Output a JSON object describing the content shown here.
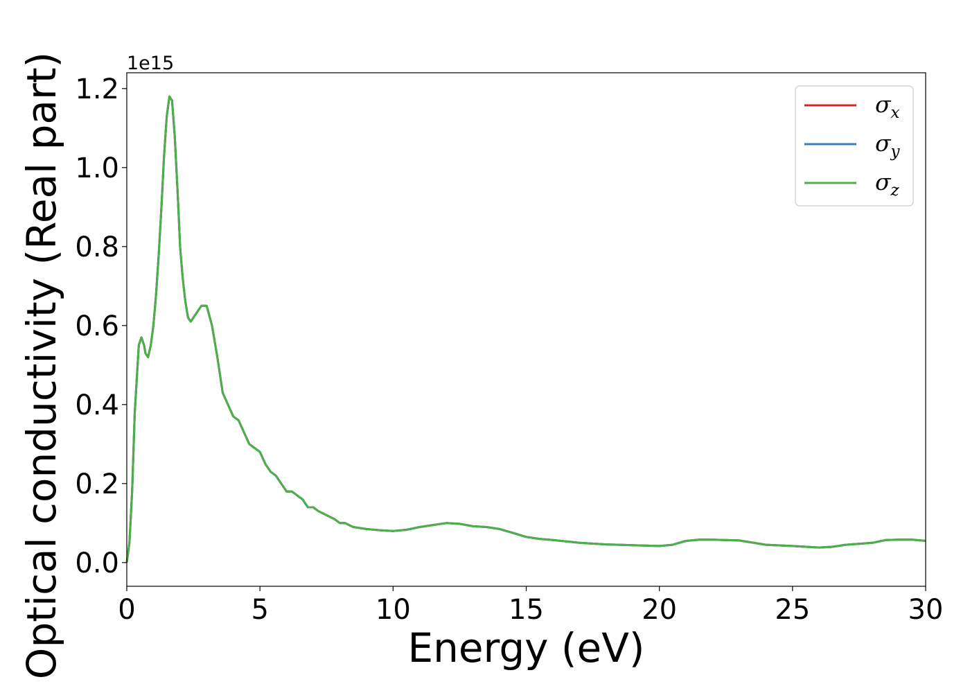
{
  "chart_data": {
    "type": "line",
    "title": "",
    "xlabel": "Energy (eV)",
    "ylabel": "Optical conductivity (Real part)",
    "y_offset_label": "1e15",
    "y_scale": 1000000000000000.0,
    "xlim": [
      0,
      30
    ],
    "ylim": [
      -0.06,
      1.24
    ],
    "xticks": [
      0,
      5,
      10,
      15,
      20,
      25,
      30
    ],
    "xtick_labels": [
      "0",
      "5",
      "10",
      "15",
      "20",
      "25",
      "30"
    ],
    "yticks": [
      0.0,
      0.2,
      0.4,
      0.6,
      0.8,
      1.0,
      1.2
    ],
    "ytick_labels": [
      "0.0",
      "0.2",
      "0.4",
      "0.6",
      "0.8",
      "1.0",
      "1.2"
    ],
    "grid": false,
    "legend_position": "top-right",
    "x": [
      0,
      0.1,
      0.2,
      0.3,
      0.45,
      0.55,
      0.65,
      0.7,
      0.8,
      0.9,
      1.0,
      1.1,
      1.2,
      1.3,
      1.4,
      1.5,
      1.6,
      1.7,
      1.8,
      1.9,
      1.95,
      2.0,
      2.1,
      2.2,
      2.3,
      2.4,
      2.5,
      2.6,
      2.8,
      3.0,
      3.2,
      3.4,
      3.6,
      3.8,
      4.0,
      4.2,
      4.4,
      4.6,
      4.8,
      5.0,
      5.2,
      5.4,
      5.6,
      5.8,
      6.0,
      6.2,
      6.4,
      6.6,
      6.8,
      7.0,
      7.2,
      7.5,
      7.8,
      8.0,
      8.2,
      8.5,
      9.0,
      9.5,
      10.0,
      10.5,
      11.0,
      11.5,
      12.0,
      12.5,
      13.0,
      13.5,
      14.0,
      14.5,
      15.0,
      15.5,
      16.0,
      17.0,
      18.0,
      19.0,
      20.0,
      20.5,
      21.0,
      21.5,
      22.0,
      23.0,
      24.0,
      25.0,
      26.0,
      26.5,
      27.0,
      28.0,
      28.5,
      29.0,
      29.5,
      30.0
    ],
    "series": [
      {
        "name": "σx",
        "color": "#d62728",
        "values": [
          0.0,
          0.05,
          0.18,
          0.38,
          0.55,
          0.57,
          0.55,
          0.53,
          0.52,
          0.55,
          0.6,
          0.68,
          0.78,
          0.9,
          1.03,
          1.13,
          1.18,
          1.17,
          1.08,
          0.95,
          0.88,
          0.8,
          0.72,
          0.66,
          0.62,
          0.61,
          0.62,
          0.63,
          0.65,
          0.65,
          0.6,
          0.52,
          0.43,
          0.4,
          0.37,
          0.36,
          0.33,
          0.3,
          0.29,
          0.28,
          0.25,
          0.23,
          0.22,
          0.2,
          0.18,
          0.18,
          0.17,
          0.16,
          0.14,
          0.14,
          0.13,
          0.12,
          0.11,
          0.1,
          0.1,
          0.09,
          0.085,
          0.082,
          0.08,
          0.083,
          0.09,
          0.095,
          0.1,
          0.098,
          0.092,
          0.09,
          0.085,
          0.075,
          0.065,
          0.06,
          0.057,
          0.05,
          0.046,
          0.044,
          0.042,
          0.045,
          0.055,
          0.058,
          0.058,
          0.056,
          0.045,
          0.042,
          0.038,
          0.04,
          0.045,
          0.05,
          0.057,
          0.058,
          0.058,
          0.055
        ]
      },
      {
        "name": "σy",
        "color": "#377eb8",
        "values": [
          0.0,
          0.05,
          0.18,
          0.38,
          0.55,
          0.57,
          0.55,
          0.53,
          0.52,
          0.55,
          0.6,
          0.68,
          0.78,
          0.9,
          1.03,
          1.13,
          1.18,
          1.17,
          1.08,
          0.95,
          0.88,
          0.8,
          0.72,
          0.66,
          0.62,
          0.61,
          0.62,
          0.63,
          0.65,
          0.65,
          0.6,
          0.52,
          0.43,
          0.4,
          0.37,
          0.36,
          0.33,
          0.3,
          0.29,
          0.28,
          0.25,
          0.23,
          0.22,
          0.2,
          0.18,
          0.18,
          0.17,
          0.16,
          0.14,
          0.14,
          0.13,
          0.12,
          0.11,
          0.1,
          0.1,
          0.09,
          0.085,
          0.082,
          0.08,
          0.083,
          0.09,
          0.095,
          0.1,
          0.098,
          0.092,
          0.09,
          0.085,
          0.075,
          0.065,
          0.06,
          0.057,
          0.05,
          0.046,
          0.044,
          0.042,
          0.045,
          0.055,
          0.058,
          0.058,
          0.056,
          0.045,
          0.042,
          0.038,
          0.04,
          0.045,
          0.05,
          0.057,
          0.058,
          0.058,
          0.055
        ]
      },
      {
        "name": "σz",
        "color": "#4daf4a",
        "values": [
          0.0,
          0.05,
          0.18,
          0.38,
          0.55,
          0.57,
          0.55,
          0.53,
          0.52,
          0.55,
          0.6,
          0.68,
          0.78,
          0.9,
          1.03,
          1.13,
          1.18,
          1.17,
          1.08,
          0.95,
          0.88,
          0.8,
          0.72,
          0.66,
          0.62,
          0.61,
          0.62,
          0.63,
          0.65,
          0.65,
          0.6,
          0.52,
          0.43,
          0.4,
          0.37,
          0.36,
          0.33,
          0.3,
          0.29,
          0.28,
          0.25,
          0.23,
          0.22,
          0.2,
          0.18,
          0.18,
          0.17,
          0.16,
          0.14,
          0.14,
          0.13,
          0.12,
          0.11,
          0.1,
          0.1,
          0.09,
          0.085,
          0.082,
          0.08,
          0.083,
          0.09,
          0.095,
          0.1,
          0.098,
          0.092,
          0.09,
          0.085,
          0.075,
          0.065,
          0.06,
          0.057,
          0.05,
          0.046,
          0.044,
          0.042,
          0.045,
          0.055,
          0.058,
          0.058,
          0.056,
          0.045,
          0.042,
          0.038,
          0.04,
          0.045,
          0.05,
          0.057,
          0.058,
          0.058,
          0.055
        ]
      }
    ],
    "legend": [
      {
        "symbol": "σ",
        "sub": "x",
        "color": "#d62728"
      },
      {
        "symbol": "σ",
        "sub": "y",
        "color": "#377eb8"
      },
      {
        "symbol": "σ",
        "sub": "z",
        "color": "#4daf4a"
      }
    ]
  }
}
